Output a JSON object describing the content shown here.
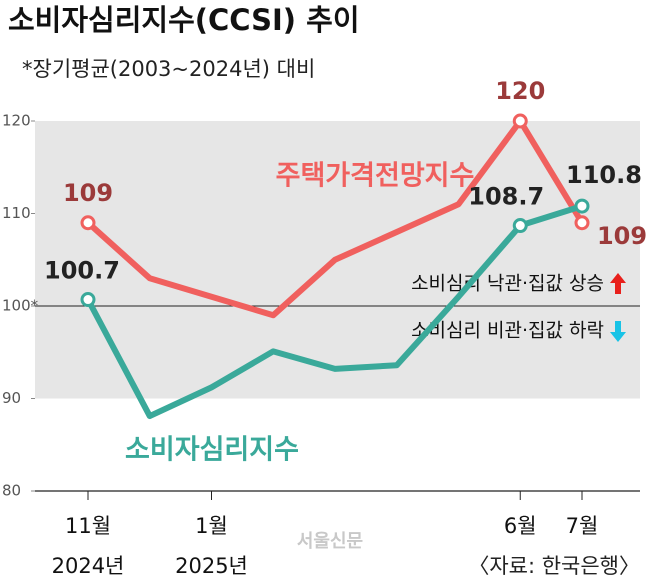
{
  "chart_data": {
    "type": "line",
    "title": "소비자심리지수(CCSI) 추이",
    "subtitle": "*장기평균(2003~2024년) 대비",
    "categories": [
      "11월",
      null,
      "1월",
      null,
      null,
      null,
      null,
      "6월",
      "7월"
    ],
    "category_years": [
      "2024년",
      null,
      "2025년",
      null,
      null,
      null,
      null,
      null,
      null
    ],
    "series": [
      {
        "name": "주택가격전망지수",
        "color": "#f0605e",
        "label_color": "#9b3a3a",
        "values": [
          109,
          103,
          101,
          99,
          105,
          108,
          111,
          120,
          109
        ],
        "value_labels": [
          "109",
          null,
          null,
          null,
          null,
          null,
          null,
          "120",
          "109"
        ]
      },
      {
        "name": "소비자심리지수",
        "color": "#3aa99a",
        "label_color": "#222222",
        "values": [
          100.7,
          88.1,
          91.2,
          95.1,
          93.2,
          93.6,
          101,
          108.7,
          110.8
        ],
        "value_labels": [
          "100.7",
          null,
          null,
          null,
          null,
          null,
          null,
          "108.7",
          "110.8"
        ]
      }
    ],
    "ylim": [
      80,
      120
    ],
    "yticks": [
      80,
      90,
      {
        "value": 100,
        "label": "100*"
      },
      110,
      120
    ],
    "band": [
      90,
      120
    ],
    "reference": 100,
    "annotations": [
      "소비심리 낙관·집값 상승",
      "소비심리 비관·집값 하락"
    ],
    "watermark": "서울신문",
    "source": "〈자료: 한국은행〉"
  }
}
